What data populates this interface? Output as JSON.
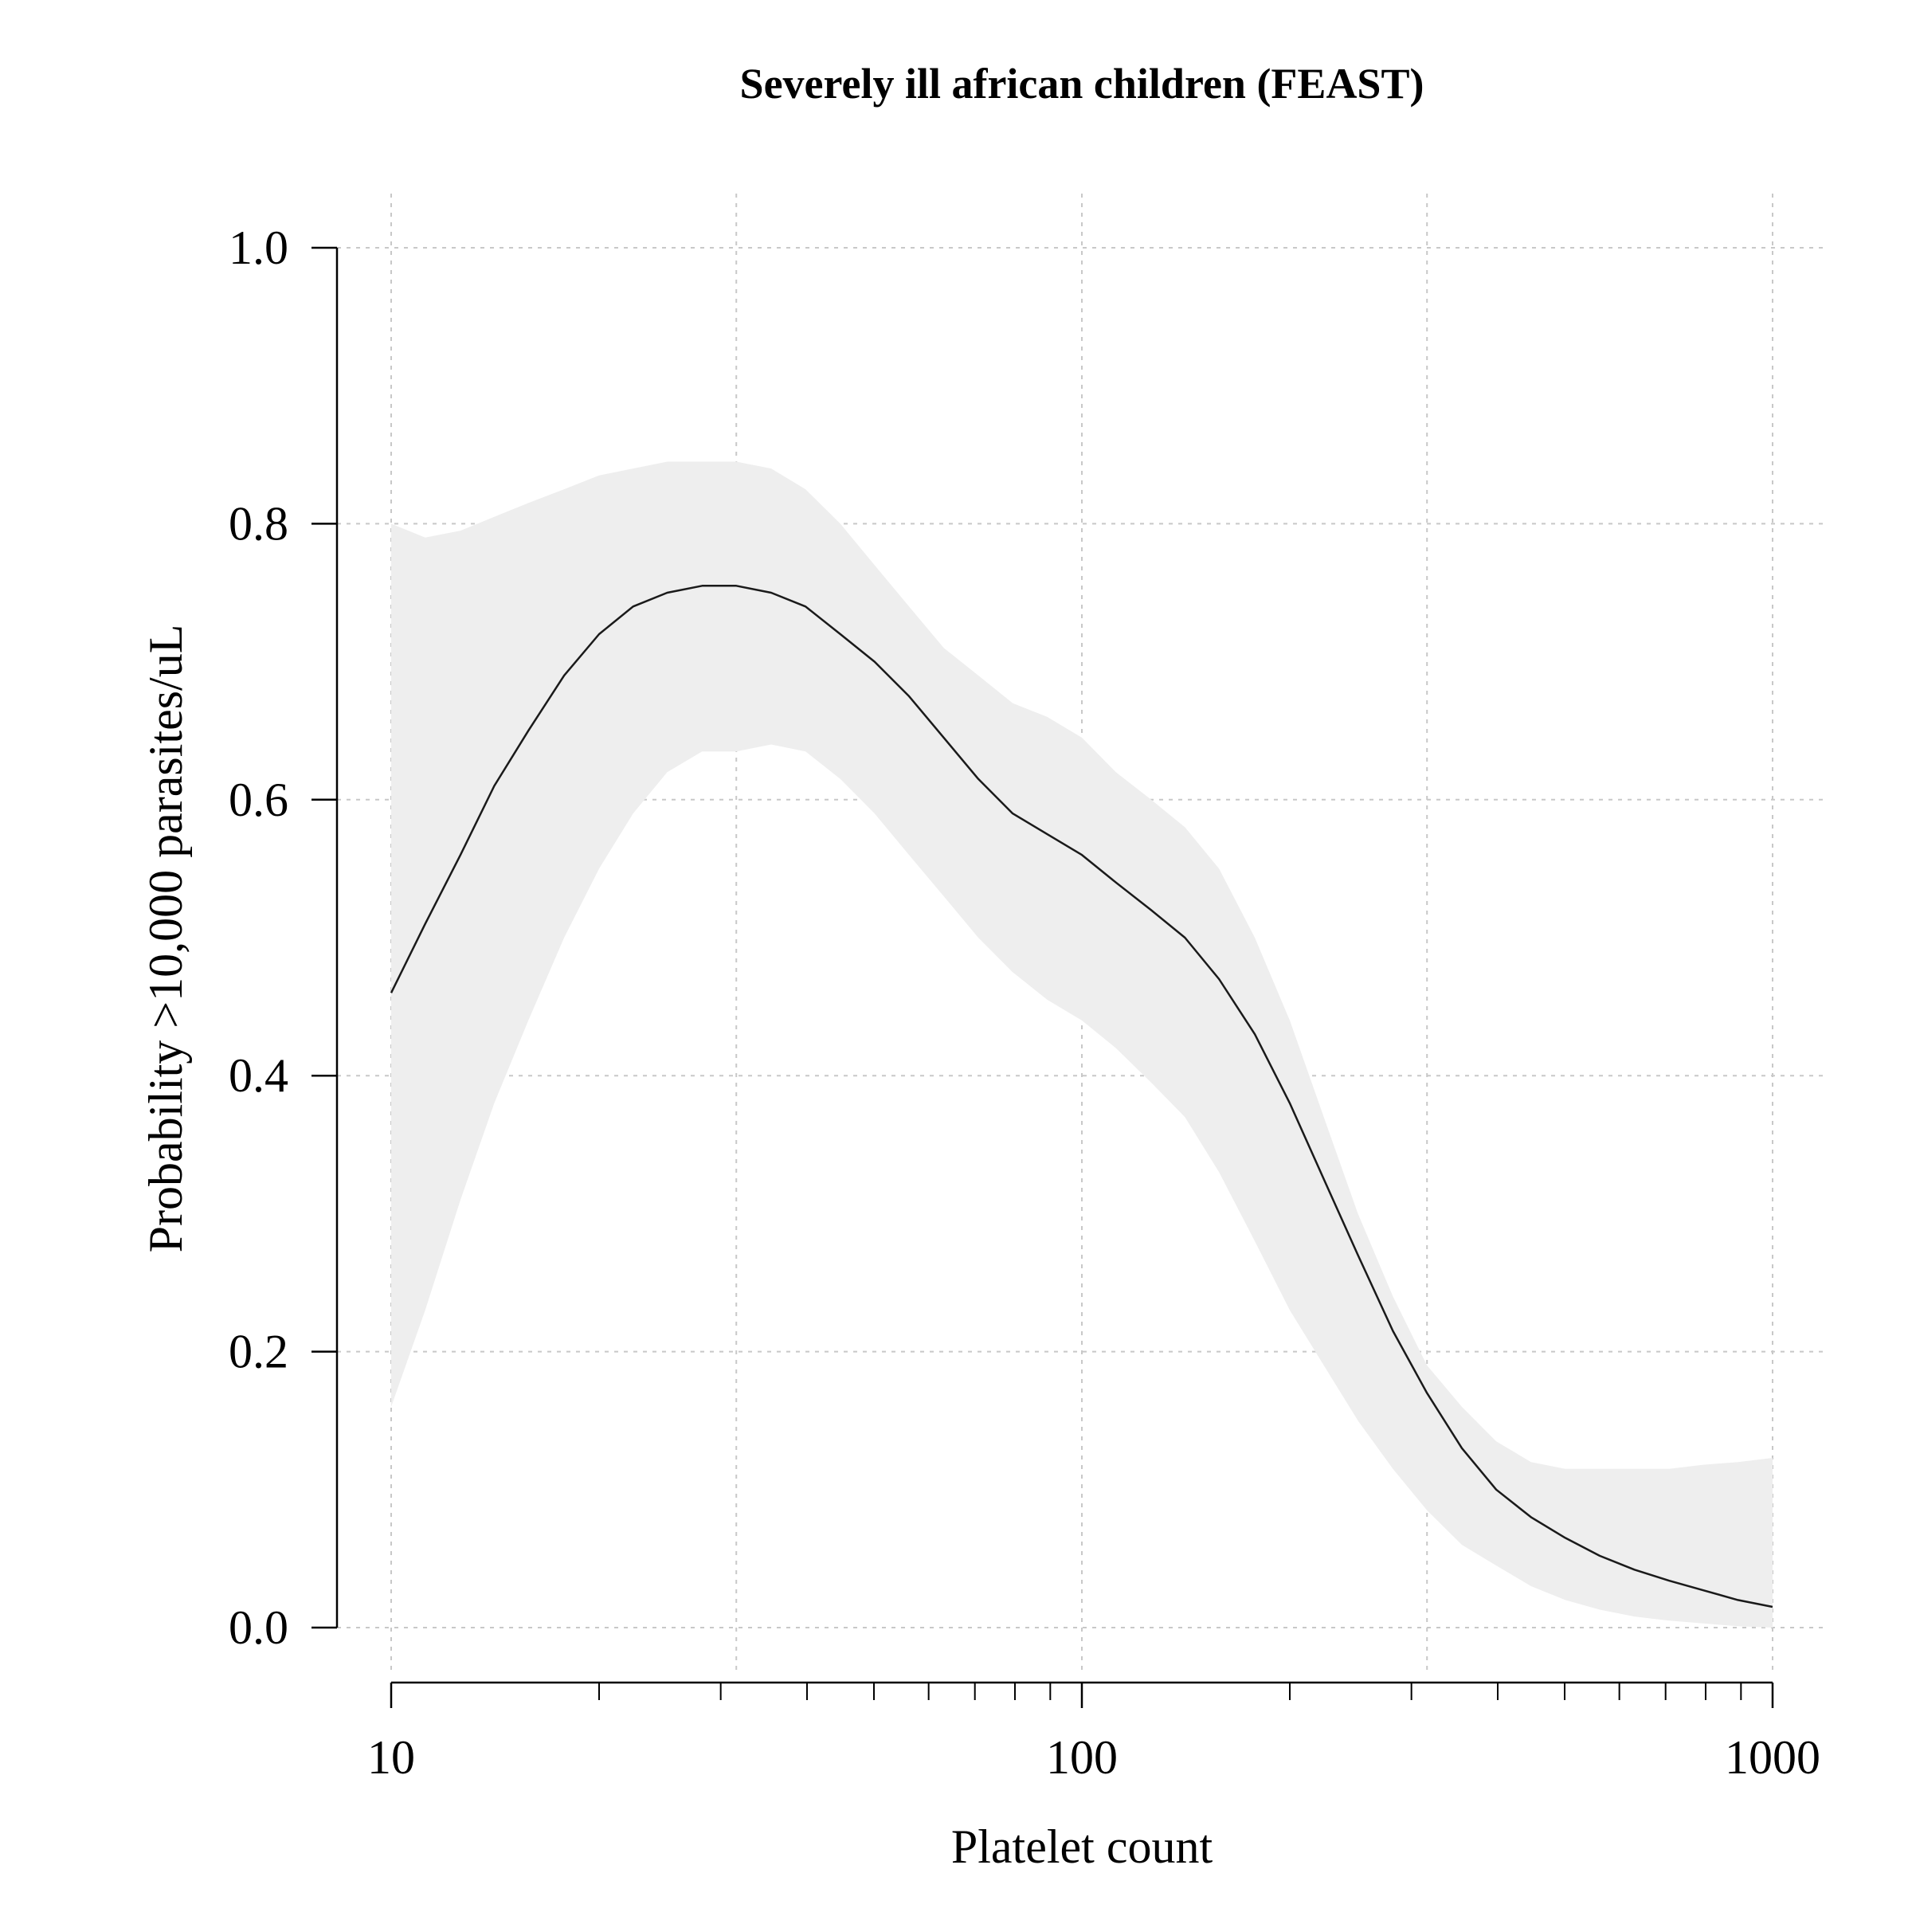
{
  "chart_data": {
    "type": "line",
    "title": "Severely ill african children (FEAST)",
    "xlabel": "Platelet count",
    "ylabel": "Probability >10,000 parasites/uL",
    "x_scale": "log10",
    "xlim": [
      10,
      1000
    ],
    "ylim": [
      0,
      1
    ],
    "x_ticks": [
      10,
      100,
      1000
    ],
    "x_tick_labels": [
      "10",
      "100",
      "1000"
    ],
    "x_minor_ticks": [
      20,
      30,
      40,
      50,
      60,
      70,
      80,
      90,
      200,
      300,
      400,
      500,
      600,
      700,
      800,
      900
    ],
    "x_grid": [
      10,
      31.6,
      100,
      316,
      1000
    ],
    "y_ticks": [
      0.0,
      0.2,
      0.4,
      0.6,
      0.8,
      1.0
    ],
    "y_tick_labels": [
      "0.0",
      "0.2",
      "0.4",
      "0.6",
      "0.8",
      "1.0"
    ],
    "grid": true,
    "colors": {
      "line": "#1a1a1a",
      "band": "#eeeeee",
      "grid": "#c8c8c8",
      "axis": "#000000"
    },
    "series": [
      {
        "x": [
          10,
          11.2,
          12.6,
          14.1,
          15.8,
          17.8,
          20,
          22.4,
          25.1,
          28.2,
          31.6,
          35.5,
          39.8,
          44.7,
          50.1,
          56.2,
          63.1,
          70.8,
          79.4,
          89.1,
          100,
          112,
          126,
          141,
          158,
          178,
          200,
          224,
          251,
          282,
          316,
          355,
          398,
          447,
          501,
          562,
          631,
          708,
          794,
          891,
          1000
        ],
        "y": [
          0.46,
          0.51,
          0.56,
          0.61,
          0.65,
          0.69,
          0.72,
          0.74,
          0.75,
          0.755,
          0.755,
          0.75,
          0.74,
          0.72,
          0.7,
          0.675,
          0.645,
          0.615,
          0.59,
          0.575,
          0.56,
          0.54,
          0.52,
          0.5,
          0.47,
          0.43,
          0.38,
          0.325,
          0.27,
          0.215,
          0.17,
          0.13,
          0.1,
          0.08,
          0.065,
          0.052,
          0.042,
          0.034,
          0.027,
          0.02,
          0.015
        ],
        "lower": [
          0.16,
          0.23,
          0.31,
          0.38,
          0.44,
          0.5,
          0.55,
          0.59,
          0.62,
          0.635,
          0.635,
          0.64,
          0.635,
          0.615,
          0.59,
          0.56,
          0.53,
          0.5,
          0.475,
          0.455,
          0.44,
          0.42,
          0.395,
          0.37,
          0.33,
          0.28,
          0.23,
          0.19,
          0.15,
          0.115,
          0.085,
          0.06,
          0.045,
          0.03,
          0.02,
          0.013,
          0.008,
          0.005,
          0.003,
          0.001,
          0.0
        ],
        "upper": [
          0.8,
          0.79,
          0.795,
          0.805,
          0.815,
          0.825,
          0.835,
          0.84,
          0.845,
          0.845,
          0.845,
          0.84,
          0.825,
          0.8,
          0.77,
          0.74,
          0.71,
          0.69,
          0.67,
          0.66,
          0.645,
          0.62,
          0.6,
          0.58,
          0.55,
          0.5,
          0.44,
          0.37,
          0.3,
          0.24,
          0.19,
          0.16,
          0.135,
          0.12,
          0.115,
          0.115,
          0.115,
          0.115,
          0.118,
          0.12,
          0.123
        ]
      }
    ]
  }
}
